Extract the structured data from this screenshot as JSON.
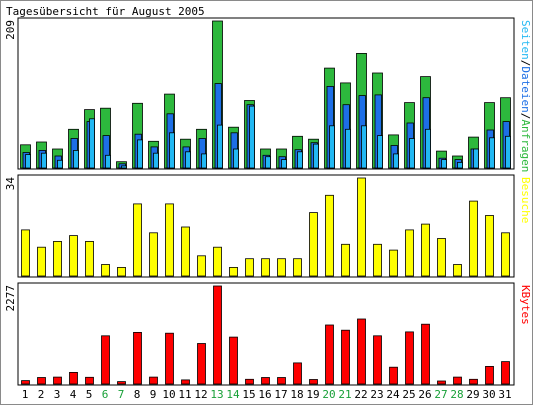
{
  "chart_data": [
    {
      "type": "bar",
      "title": "Tagesübersicht für August 2005",
      "ylabel_max": "209",
      "legend": [
        "Seiten",
        "Dateien",
        "Anfragen"
      ],
      "legend_separator": "/",
      "colors": {
        "Anfragen": "#2db83d",
        "Dateien": "#1d6fe6",
        "Seiten": "#22b8f3"
      },
      "categories": [
        "1",
        "2",
        "3",
        "4",
        "5",
        "6",
        "7",
        "8",
        "9",
        "10",
        "11",
        "12",
        "13",
        "14",
        "15",
        "16",
        "17",
        "18",
        "19",
        "20",
        "21",
        "22",
        "23",
        "24",
        "25",
        "26",
        "27",
        "28",
        "29",
        "30",
        "31"
      ],
      "weekend_days": [
        "6",
        "7",
        "13",
        "14",
        "20",
        "21",
        "27",
        "28"
      ],
      "ylim": [
        0,
        209
      ],
      "series": [
        {
          "name": "Anfragen",
          "values": [
            33,
            37,
            27,
            55,
            83,
            85,
            9,
            92,
            38,
            105,
            41,
            55,
            209,
            58,
            96,
            27,
            27,
            45,
            41,
            142,
            121,
            163,
            135,
            47,
            93,
            130,
            24,
            17,
            44,
            93,
            100
          ]
        },
        {
          "name": "Dateien",
          "values": [
            22,
            25,
            17,
            42,
            66,
            46,
            6,
            48,
            30,
            77,
            30,
            42,
            120,
            50,
            90,
            18,
            16,
            26,
            36,
            116,
            90,
            103,
            104,
            32,
            64,
            100,
            14,
            12,
            27,
            54,
            66
          ]
        },
        {
          "name": "Seiten",
          "values": [
            19,
            21,
            11,
            25,
            70,
            18,
            3,
            40,
            21,
            50,
            23,
            20,
            61,
            27,
            88,
            16,
            12,
            23,
            34,
            60,
            55,
            60,
            46,
            20,
            42,
            55,
            12,
            8,
            27,
            43,
            45
          ]
        }
      ]
    },
    {
      "type": "bar",
      "ylabel_max": "34",
      "legend": [
        "Besuche"
      ],
      "colors": {
        "Besuche": "#ffff00"
      },
      "categories": [
        "1",
        "2",
        "3",
        "4",
        "5",
        "6",
        "7",
        "8",
        "9",
        "10",
        "11",
        "12",
        "13",
        "14",
        "15",
        "16",
        "17",
        "18",
        "19",
        "20",
        "21",
        "22",
        "23",
        "24",
        "25",
        "26",
        "27",
        "28",
        "29",
        "30",
        "31"
      ],
      "ylim": [
        0,
        34
      ],
      "series": [
        {
          "name": "Besuche",
          "values": [
            16,
            10,
            12,
            14,
            12,
            4,
            3,
            25,
            15,
            25,
            17,
            7,
            10,
            3,
            6,
            6,
            6,
            6,
            22,
            28,
            11,
            34,
            11,
            9,
            16,
            18,
            13,
            4,
            26,
            21,
            15
          ]
        }
      ]
    },
    {
      "type": "bar",
      "ylabel_max": "2277",
      "legend": [
        "KBytes"
      ],
      "colors": {
        "KBytes": "#ff0000"
      },
      "categories": [
        "1",
        "2",
        "3",
        "4",
        "5",
        "6",
        "7",
        "8",
        "9",
        "10",
        "11",
        "12",
        "13",
        "14",
        "15",
        "16",
        "17",
        "18",
        "19",
        "20",
        "21",
        "22",
        "23",
        "24",
        "25",
        "26",
        "27",
        "28",
        "29",
        "30",
        "31"
      ],
      "ylim": [
        0,
        2277
      ],
      "series": [
        {
          "name": "KBytes",
          "values": [
            78,
            150,
            160,
            270,
            155,
            1120,
            55,
            1200,
            160,
            1180,
            95,
            940,
            2277,
            1090,
            110,
            150,
            150,
            490,
            105,
            1370,
            1250,
            1510,
            1120,
            390,
            1210,
            1390,
            70,
            160,
            110,
            410,
            520
          ]
        }
      ]
    }
  ]
}
